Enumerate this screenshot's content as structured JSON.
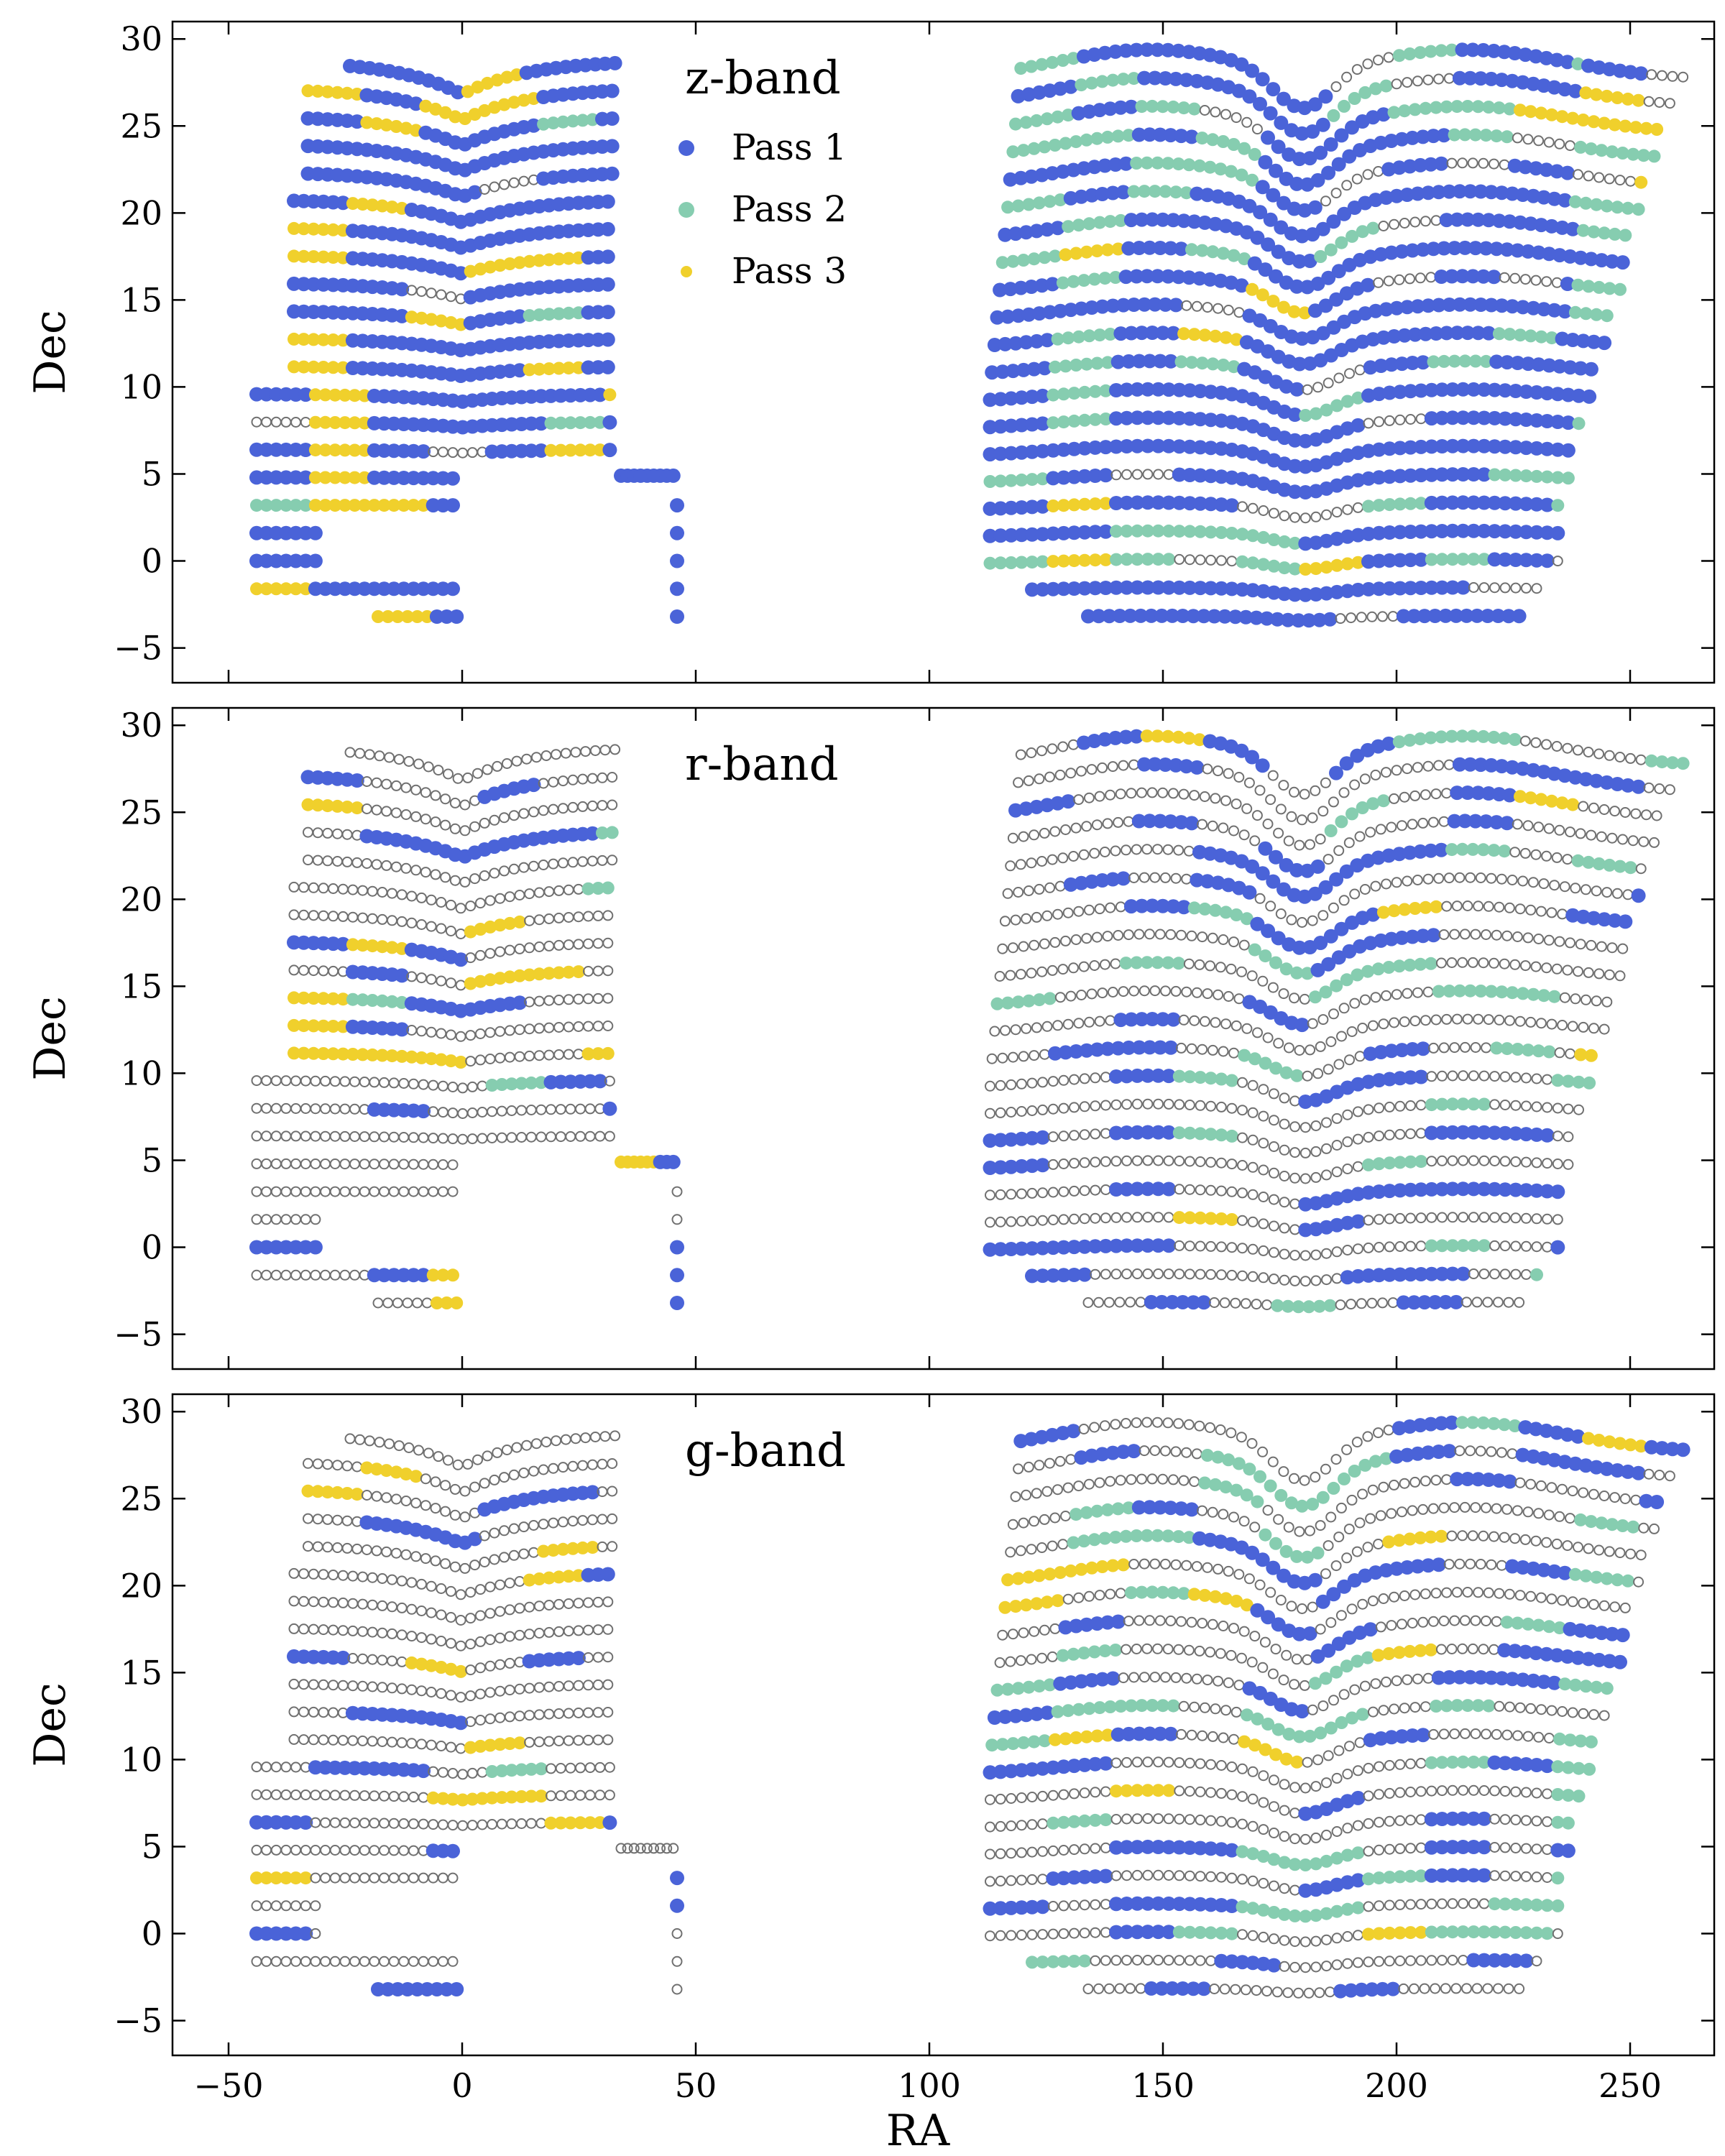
{
  "chart_data": {
    "type": "scatter",
    "xlabel": "RA",
    "ylabel": "Dec",
    "xlim": [
      -62,
      268
    ],
    "ylim": [
      -7,
      31
    ],
    "x_ticks": [
      -50,
      0,
      50,
      100,
      150,
      200,
      250
    ],
    "y_ticks": [
      -5,
      0,
      5,
      10,
      15,
      20,
      25,
      30
    ],
    "x_tick_labels": [
      "−50",
      "0",
      "50",
      "100",
      "150",
      "200",
      "250"
    ],
    "y_tick_labels": [
      "−5",
      "0",
      "5",
      "10",
      "15",
      "20",
      "25",
      "30"
    ],
    "grid": false,
    "legend": {
      "placement": "upper-center",
      "entries": [
        {
          "name": "Pass 1",
          "color": "#4a63d8"
        },
        {
          "name": "Pass 2",
          "color": "#86cdb0"
        },
        {
          "name": "Pass 3",
          "color": "#f0d02c"
        }
      ]
    },
    "unobserved_marker": {
      "style": "open-circle",
      "color": "#707070"
    },
    "panels": [
      {
        "label": "z-band",
        "coverage": {
          "south_p1": 0.68,
          "south_p2": 0.06,
          "south_p3": 0.22,
          "north_p1": 0.62,
          "north_p2": 0.26,
          "north_p3": 0.04,
          "ne_fill": 0.9
        }
      },
      {
        "label": "r-band",
        "coverage": {
          "south_p1": 0.12,
          "south_p2": 0.02,
          "south_p3": 0.1,
          "north_p1": 0.28,
          "north_p2": 0.1,
          "north_p3": 0.03,
          "ne_fill": 0.55
        }
      },
      {
        "label": "g-band",
        "coverage": {
          "south_p1": 0.12,
          "south_p2": 0.03,
          "south_p3": 0.08,
          "north_p1": 0.27,
          "north_p2": 0.12,
          "north_p3": 0.03,
          "ne_fill": 0.5
        }
      }
    ],
    "footprint": {
      "south": {
        "ra_range": [
          -44,
          34
        ],
        "dec_range": [
          -4.5,
          30
        ],
        "row_spacing_dec": 1.6
      },
      "north": {
        "ra_range": [
          112,
          266
        ],
        "dec_range": [
          -4.5,
          30
        ],
        "row_spacing_dec": 1.6
      },
      "isolated_strip": {
        "ra_range": [
          34,
          46
        ],
        "dec": 4.9
      }
    }
  },
  "colors": {
    "pass1": "#4a63d8",
    "pass2": "#86cdb0",
    "pass3": "#f0d02c",
    "unobserved": "#707070",
    "axes": "#000000"
  }
}
